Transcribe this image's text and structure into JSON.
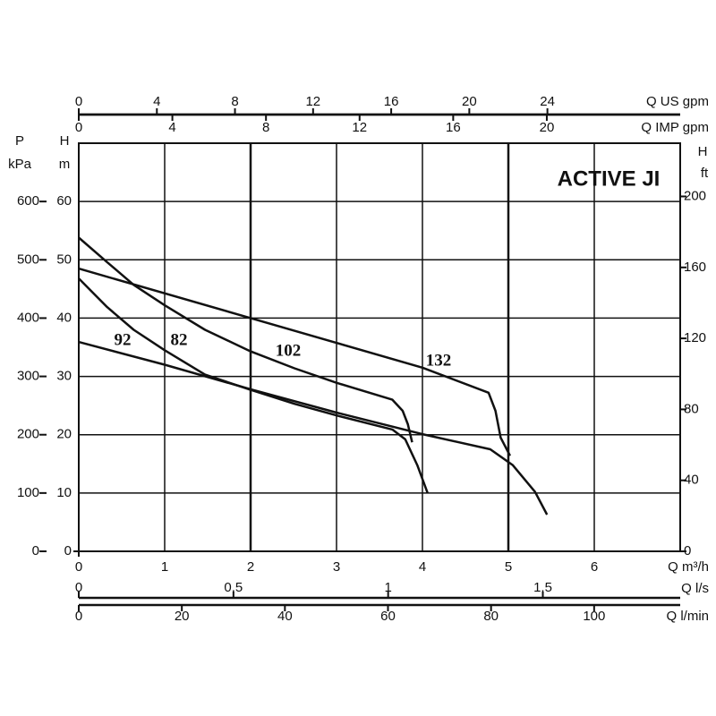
{
  "chart_data": {
    "type": "line",
    "title": "ACTIVE JI",
    "x_label": "Q m³/h",
    "xlim": [
      0,
      7
    ],
    "xticks": [
      0,
      1,
      2,
      3,
      4,
      5,
      6
    ],
    "y_label": "H",
    "y_unit": "m",
    "ylim": [
      0,
      70
    ],
    "yticks": [
      0,
      10,
      20,
      30,
      40,
      50,
      60
    ],
    "grid": true,
    "pressure_axis": {
      "label": "P",
      "unit": "kPa",
      "lim": [
        0,
        700
      ],
      "ticks": [
        0,
        100,
        200,
        300,
        400,
        500,
        600
      ]
    },
    "feet_axis": {
      "label": "H",
      "unit": "ft",
      "lim": [
        0,
        230
      ],
      "ticks": [
        0,
        40,
        80,
        120,
        160,
        200
      ]
    },
    "us_gpm_axis": {
      "label": "Q US gpm",
      "lim": [
        0,
        30.8
      ],
      "ticks": [
        0,
        4,
        8,
        12,
        16,
        20,
        24
      ]
    },
    "imp_gpm_axis": {
      "label": "Q IMP gpm",
      "lim": [
        0,
        25.7
      ],
      "ticks": [
        0,
        4,
        8,
        12,
        16,
        20
      ]
    },
    "ls_axis": {
      "label": "Q l/s",
      "lim": [
        0,
        1.944
      ],
      "ticks": [
        0,
        {
          "value": 0.5,
          "label": "0,5"
        },
        1,
        {
          "value": 1.5,
          "label": "1,5"
        }
      ]
    },
    "lmin_axis": {
      "label": "Q l/min",
      "lim": [
        0,
        116.7
      ],
      "ticks": [
        0,
        20,
        40,
        60,
        80,
        100
      ]
    },
    "series": [
      {
        "name": "92",
        "color": "#111111",
        "x": [
          0,
          1,
          2,
          3,
          4,
          4.79,
          5.05,
          5.31,
          5.45
        ],
        "values": [
          35.9,
          32.0,
          27.8,
          23.8,
          20.1,
          17.5,
          14.8,
          10.2,
          6.3
        ]
      },
      {
        "name": "82",
        "color": "#111111",
        "x": [
          0,
          0.33,
          0.64,
          1,
          1.47,
          2,
          2.51,
          3.03,
          3.65,
          3.8,
          3.94,
          4.06
        ],
        "values": [
          46.8,
          41.9,
          38.0,
          34.5,
          30.3,
          27.7,
          25.3,
          23.2,
          20.9,
          19.2,
          14.8,
          10.0
        ]
      },
      {
        "name": "102",
        "color": "#111111",
        "x": [
          0,
          0.33,
          0.64,
          1,
          1.47,
          2,
          2.51,
          3,
          3.65,
          3.77,
          3.83,
          3.88
        ],
        "values": [
          53.8,
          49.6,
          45.7,
          42.2,
          38.0,
          34.3,
          31.4,
          28.9,
          26.0,
          24.1,
          21.8,
          18.7
        ]
      },
      {
        "name": "132",
        "color": "#111111",
        "x": [
          0,
          2,
          4,
          4.77,
          4.85,
          4.91,
          5.02
        ],
        "values": [
          48.5,
          40.0,
          31.5,
          27.2,
          24.1,
          19.5,
          16.4
        ]
      }
    ]
  }
}
